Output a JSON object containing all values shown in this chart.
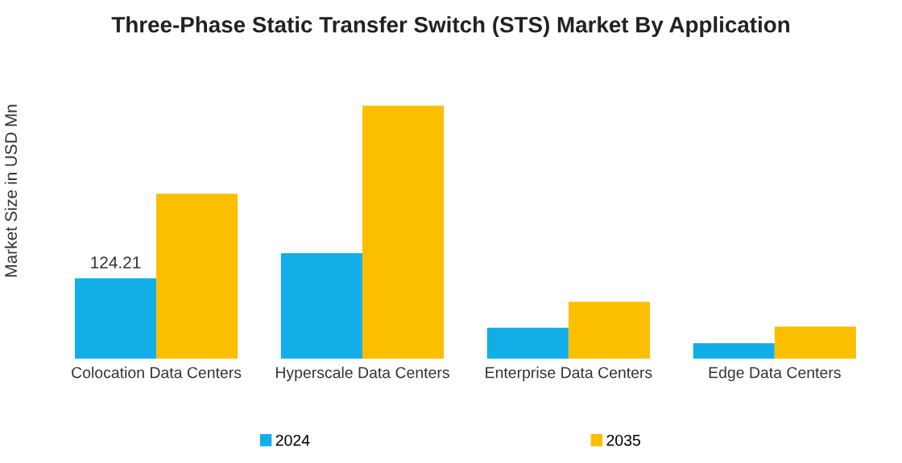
{
  "chart_data": {
    "type": "bar",
    "title": "Three-Phase Static Transfer Switch (STS) Market By Application",
    "ylabel": "Market Size in USD Mn",
    "categories": [
      "Colocation Data Centers",
      "Hyperscale Data Centers",
      "Enterprise Data Centers",
      "Edge Data Centers"
    ],
    "series": [
      {
        "name": "2024",
        "color": "#12aee8",
        "values": [
          124.21,
          163,
          48,
          24
        ],
        "value_labels": [
          "124.21",
          null,
          null,
          null
        ]
      },
      {
        "name": "2035",
        "color": "#fcbf00",
        "values": [
          255,
          391,
          88,
          50
        ]
      }
    ],
    "grid": false,
    "legend": "bottom",
    "tick_labels": "x"
  }
}
